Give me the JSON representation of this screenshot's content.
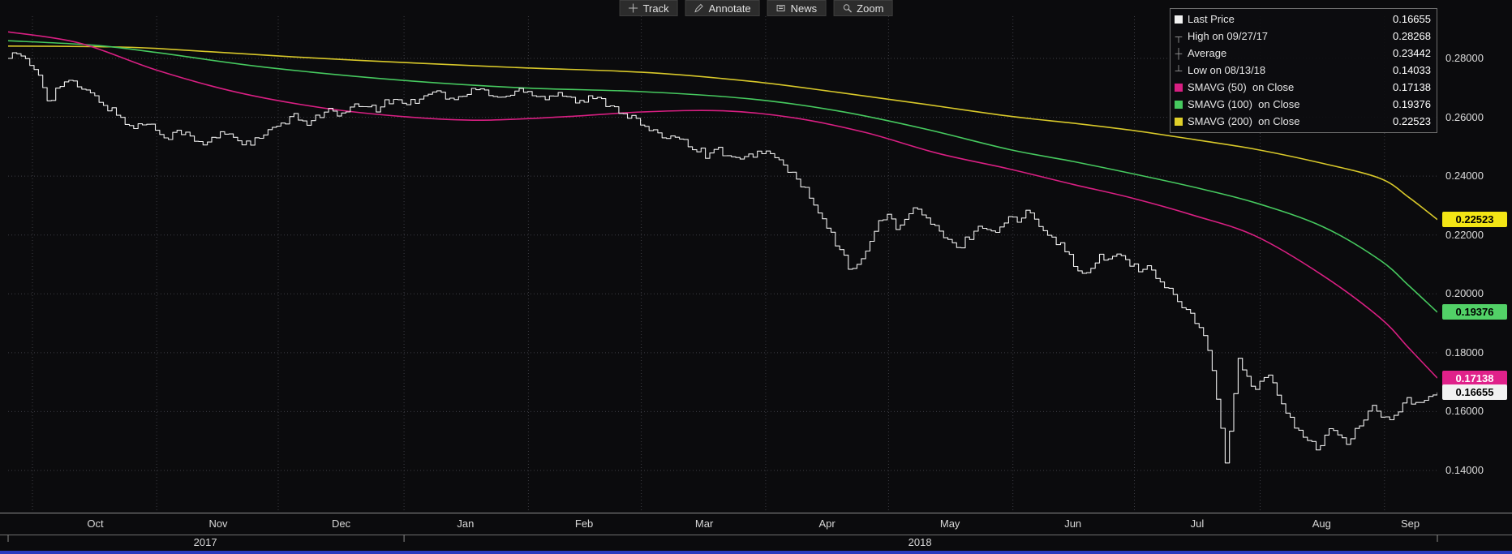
{
  "toolbar": {
    "buttons": [
      {
        "label": "Track",
        "icon": "track-crosshair-icon"
      },
      {
        "label": "Annotate",
        "icon": "annotate-pencil-icon"
      },
      {
        "label": "News",
        "icon": "news-icon"
      },
      {
        "label": "Zoom",
        "icon": "zoom-magnifier-icon"
      }
    ]
  },
  "legend": {
    "rows": [
      {
        "icon": "last-price-swatch",
        "swatch_color": "#f2f2f2",
        "label": "Last Price",
        "value": "0.16655"
      },
      {
        "icon": "high-marker-icon",
        "label": "High on 09/27/17",
        "value": "0.28268"
      },
      {
        "icon": "average-marker-icon",
        "label": "Average",
        "value": "0.23442"
      },
      {
        "icon": "low-marker-icon",
        "label": "Low on 08/13/18",
        "value": "0.14033"
      },
      {
        "icon": "smavg50-swatch",
        "swatch_color": "#d81f82",
        "label": "SMAVG (50)  on Close",
        "value": "0.17138"
      },
      {
        "icon": "smavg100-swatch",
        "swatch_color": "#46c95f",
        "label": "SMAVG (100)  on Close",
        "value": "0.19376"
      },
      {
        "icon": "smavg200-swatch",
        "swatch_color": "#e0d02a",
        "label": "SMAVG (200)  on Close",
        "value": "0.22523"
      }
    ]
  },
  "colors": {
    "background": "#0b0b0d",
    "grid": "#3d3d44",
    "price": "#f0f0f0",
    "smavg50": "#d81f82",
    "smavg100": "#46c95f",
    "smavg200": "#d8c82a",
    "axis_text": "#dcdcdc"
  },
  "chart_data": {
    "type": "line",
    "title": "",
    "x_unit": "time, Oct 2017 - Sep 2018",
    "grid": true,
    "legend_position": "top-right",
    "stats": {
      "last_price": 0.16655,
      "high": {
        "date": "09/27/17",
        "value": 0.28268
      },
      "average": 0.23442,
      "low": {
        "date": "08/13/18",
        "value": 0.14033
      },
      "smavg_50_close": 0.17138,
      "smavg_100_close": 0.19376,
      "smavg_200_close": 0.22523
    },
    "y_axis": {
      "ylim": [
        0.1255,
        0.2945
      ],
      "ticks": [
        {
          "label": "0.28000",
          "value": 0.28
        },
        {
          "label": "0.26000",
          "value": 0.26
        },
        {
          "label": "0.24000",
          "value": 0.24
        },
        {
          "label": "0.22000",
          "value": 0.22
        },
        {
          "label": "0.20000",
          "value": 0.2
        },
        {
          "label": "0.18000",
          "value": 0.18
        },
        {
          "label": "0.16000",
          "value": 0.16
        },
        {
          "label": "0.14000",
          "value": 0.14
        }
      ]
    },
    "x_axis": {
      "month_boundaries": [
        0.017,
        0.104,
        0.189,
        0.277,
        0.364,
        0.443,
        0.53,
        0.616,
        0.703,
        0.788,
        0.876,
        0.963
      ],
      "months": [
        {
          "label": "Oct",
          "center": 0.061
        },
        {
          "label": "Nov",
          "center": 0.147
        },
        {
          "label": "Dec",
          "center": 0.233
        },
        {
          "label": "Jan",
          "center": 0.32
        },
        {
          "label": "Feb",
          "center": 0.403
        },
        {
          "label": "Mar",
          "center": 0.487
        },
        {
          "label": "Apr",
          "center": 0.573
        },
        {
          "label": "May",
          "center": 0.659
        },
        {
          "label": "Jun",
          "center": 0.745
        },
        {
          "label": "Jul",
          "center": 0.832
        },
        {
          "label": "Aug",
          "center": 0.919
        },
        {
          "label": "Sep",
          "center": 0.981
        }
      ],
      "years": [
        {
          "label": "2017",
          "center": 0.138
        },
        {
          "label": "2018",
          "center": 0.638
        }
      ],
      "year_ticks": [
        0.0,
        0.277,
        1.0
      ]
    },
    "markers": [
      {
        "name": "smavg-200-badge",
        "label": "0.22523",
        "value": 0.22523,
        "bg": "#f3e515",
        "fg": "#000000"
      },
      {
        "name": "smavg-100-badge",
        "label": "0.19376",
        "value": 0.19376,
        "bg": "#52d167",
        "fg": "#000000"
      },
      {
        "name": "smavg-50-badge",
        "label": "0.17138",
        "value": 0.17138,
        "bg": "#e0218a",
        "fg": "#ffffff"
      },
      {
        "name": "last-price-badge",
        "label": "0.16655",
        "value": 0.16655,
        "bg": "#f2f2f2",
        "fg": "#000000"
      }
    ],
    "series": [
      {
        "name": "SMAVG (200) on Close",
        "color": "#d8c82a",
        "style": "smooth",
        "width": 1.6,
        "points": [
          [
            0.0,
            0.2842
          ],
          [
            0.06,
            0.284
          ],
          [
            0.104,
            0.2834
          ],
          [
            0.2,
            0.2805
          ],
          [
            0.277,
            0.2786
          ],
          [
            0.36,
            0.2768
          ],
          [
            0.4435,
            0.2753
          ],
          [
            0.52,
            0.2722
          ],
          [
            0.58,
            0.2685
          ],
          [
            0.64,
            0.2645
          ],
          [
            0.7,
            0.2604
          ],
          [
            0.745,
            0.258
          ],
          [
            0.786,
            0.2556
          ],
          [
            0.83,
            0.2524
          ],
          [
            0.873,
            0.2491
          ],
          [
            0.92,
            0.2443
          ],
          [
            0.96,
            0.2392
          ],
          [
            0.98,
            0.2328
          ],
          [
            1.0,
            0.22523
          ]
        ]
      },
      {
        "name": "SMAVG (100) on Close",
        "color": "#46c95f",
        "style": "smooth",
        "width": 1.6,
        "points": [
          [
            0.0,
            0.286
          ],
          [
            0.06,
            0.2845
          ],
          [
            0.104,
            0.282
          ],
          [
            0.18,
            0.277
          ],
          [
            0.277,
            0.2725
          ],
          [
            0.36,
            0.27
          ],
          [
            0.4435,
            0.2687
          ],
          [
            0.52,
            0.2662
          ],
          [
            0.58,
            0.2622
          ],
          [
            0.64,
            0.2562
          ],
          [
            0.7,
            0.2491
          ],
          [
            0.745,
            0.245
          ],
          [
            0.786,
            0.2409
          ],
          [
            0.83,
            0.2362
          ],
          [
            0.873,
            0.2309
          ],
          [
            0.92,
            0.2228
          ],
          [
            0.96,
            0.2114
          ],
          [
            0.98,
            0.2028
          ],
          [
            1.0,
            0.19376
          ]
        ]
      },
      {
        "name": "SMAVG (50) on Close",
        "color": "#d81f82",
        "style": "smooth",
        "width": 1.6,
        "points": [
          [
            0.0,
            0.289
          ],
          [
            0.05,
            0.2852
          ],
          [
            0.104,
            0.276
          ],
          [
            0.16,
            0.2685
          ],
          [
            0.22,
            0.2632
          ],
          [
            0.277,
            0.2602
          ],
          [
            0.33,
            0.259
          ],
          [
            0.39,
            0.2602
          ],
          [
            0.4435,
            0.2618
          ],
          [
            0.5,
            0.2622
          ],
          [
            0.55,
            0.2598
          ],
          [
            0.6,
            0.2548
          ],
          [
            0.65,
            0.2478
          ],
          [
            0.7,
            0.2425
          ],
          [
            0.745,
            0.2372
          ],
          [
            0.786,
            0.2326
          ],
          [
            0.83,
            0.2266
          ],
          [
            0.873,
            0.2196
          ],
          [
            0.92,
            0.2062
          ],
          [
            0.96,
            0.1918
          ],
          [
            0.98,
            0.1816
          ],
          [
            1.0,
            0.17138
          ]
        ]
      },
      {
        "name": "Last Price",
        "color": "#f0f0f0",
        "style": "step",
        "width": 1.1,
        "points": [
          [
            0.0,
            0.28
          ],
          [
            0.004,
            0.2825
          ],
          [
            0.01,
            0.2798
          ],
          [
            0.016,
            0.2772
          ],
          [
            0.022,
            0.2742
          ],
          [
            0.028,
            0.2652
          ],
          [
            0.034,
            0.2698
          ],
          [
            0.04,
            0.2725
          ],
          [
            0.048,
            0.2706
          ],
          [
            0.056,
            0.2682
          ],
          [
            0.064,
            0.2655
          ],
          [
            0.072,
            0.2624
          ],
          [
            0.08,
            0.2592
          ],
          [
            0.088,
            0.2562
          ],
          [
            0.096,
            0.2585
          ],
          [
            0.104,
            0.2556
          ],
          [
            0.112,
            0.2535
          ],
          [
            0.12,
            0.2558
          ],
          [
            0.128,
            0.2526
          ],
          [
            0.136,
            0.2505
          ],
          [
            0.144,
            0.253
          ],
          [
            0.152,
            0.2552
          ],
          [
            0.16,
            0.2526
          ],
          [
            0.168,
            0.2506
          ],
          [
            0.176,
            0.253
          ],
          [
            0.184,
            0.2556
          ],
          [
            0.192,
            0.258
          ],
          [
            0.2,
            0.26
          ],
          [
            0.208,
            0.2582
          ],
          [
            0.216,
            0.2605
          ],
          [
            0.224,
            0.2622
          ],
          [
            0.232,
            0.2603
          ],
          [
            0.24,
            0.2628
          ],
          [
            0.248,
            0.2645
          ],
          [
            0.256,
            0.2626
          ],
          [
            0.264,
            0.2648
          ],
          [
            0.272,
            0.2662
          ],
          [
            0.28,
            0.2646
          ],
          [
            0.288,
            0.2668
          ],
          [
            0.296,
            0.2694
          ],
          [
            0.304,
            0.2676
          ],
          [
            0.312,
            0.2656
          ],
          [
            0.32,
            0.2678
          ],
          [
            0.328,
            0.2699
          ],
          [
            0.336,
            0.2682
          ],
          [
            0.344,
            0.2663
          ],
          [
            0.352,
            0.268
          ],
          [
            0.36,
            0.2697
          ],
          [
            0.368,
            0.2681
          ],
          [
            0.376,
            0.2665
          ],
          [
            0.384,
            0.2687
          ],
          [
            0.392,
            0.2668
          ],
          [
            0.4,
            0.2649
          ],
          [
            0.408,
            0.2667
          ],
          [
            0.416,
            0.2654
          ],
          [
            0.424,
            0.2635
          ],
          [
            0.432,
            0.2611
          ],
          [
            0.44,
            0.2586
          ],
          [
            0.448,
            0.2558
          ],
          [
            0.456,
            0.2529
          ],
          [
            0.464,
            0.2546
          ],
          [
            0.472,
            0.2522
          ],
          [
            0.48,
            0.2498
          ],
          [
            0.488,
            0.2473
          ],
          [
            0.496,
            0.2492
          ],
          [
            0.504,
            0.2469
          ],
          [
            0.512,
            0.2448
          ],
          [
            0.52,
            0.2471
          ],
          [
            0.528,
            0.2489
          ],
          [
            0.536,
            0.2462
          ],
          [
            0.544,
            0.2429
          ],
          [
            0.552,
            0.239
          ],
          [
            0.558,
            0.2346
          ],
          [
            0.564,
            0.2296
          ],
          [
            0.57,
            0.2246
          ],
          [
            0.576,
            0.2196
          ],
          [
            0.582,
            0.2146
          ],
          [
            0.588,
            0.2092
          ],
          [
            0.592,
            0.207
          ],
          [
            0.598,
            0.2138
          ],
          [
            0.604,
            0.2198
          ],
          [
            0.61,
            0.2244
          ],
          [
            0.616,
            0.2269
          ],
          [
            0.622,
            0.2224
          ],
          [
            0.628,
            0.2256
          ],
          [
            0.634,
            0.229
          ],
          [
            0.64,
            0.2269
          ],
          [
            0.646,
            0.2236
          ],
          [
            0.652,
            0.2206
          ],
          [
            0.658,
            0.2174
          ],
          [
            0.664,
            0.2153
          ],
          [
            0.67,
            0.2184
          ],
          [
            0.676,
            0.2214
          ],
          [
            0.682,
            0.2234
          ],
          [
            0.688,
            0.2206
          ],
          [
            0.694,
            0.2232
          ],
          [
            0.7,
            0.226
          ],
          [
            0.706,
            0.2246
          ],
          [
            0.712,
            0.2276
          ],
          [
            0.718,
            0.2257
          ],
          [
            0.724,
            0.2228
          ],
          [
            0.73,
            0.2196
          ],
          [
            0.736,
            0.2166
          ],
          [
            0.742,
            0.213
          ],
          [
            0.748,
            0.2086
          ],
          [
            0.752,
            0.2054
          ],
          [
            0.758,
            0.2092
          ],
          [
            0.764,
            0.2127
          ],
          [
            0.77,
            0.2108
          ],
          [
            0.776,
            0.2141
          ],
          [
            0.782,
            0.2118
          ],
          [
            0.788,
            0.2093
          ],
          [
            0.792,
            0.2066
          ],
          [
            0.796,
            0.2097
          ],
          [
            0.8,
            0.2076
          ],
          [
            0.806,
            0.2046
          ],
          [
            0.812,
            0.2013
          ],
          [
            0.818,
            0.1983
          ],
          [
            0.824,
            0.1949
          ],
          [
            0.83,
            0.1909
          ],
          [
            0.836,
            0.1853
          ],
          [
            0.84,
            0.1796
          ],
          [
            0.844,
            0.1706
          ],
          [
            0.848,
            0.1561
          ],
          [
            0.851,
            0.14033
          ],
          [
            0.854,
            0.1499
          ],
          [
            0.857,
            0.1634
          ],
          [
            0.86,
            0.1779
          ],
          [
            0.864,
            0.1743
          ],
          [
            0.868,
            0.1701
          ],
          [
            0.872,
            0.1663
          ],
          [
            0.876,
            0.1699
          ],
          [
            0.88,
            0.1731
          ],
          [
            0.884,
            0.1694
          ],
          [
            0.888,
            0.1656
          ],
          [
            0.892,
            0.1621
          ],
          [
            0.896,
            0.1586
          ],
          [
            0.9,
            0.1556
          ],
          [
            0.905,
            0.1526
          ],
          [
            0.91,
            0.1496
          ],
          [
            0.915,
            0.1473
          ],
          [
            0.92,
            0.1507
          ],
          [
            0.925,
            0.1547
          ],
          [
            0.93,
            0.1519
          ],
          [
            0.935,
            0.1489
          ],
          [
            0.94,
            0.1516
          ],
          [
            0.945,
            0.1554
          ],
          [
            0.95,
            0.1587
          ],
          [
            0.955,
            0.1617
          ],
          [
            0.96,
            0.1593
          ],
          [
            0.965,
            0.1563
          ],
          [
            0.97,
            0.1591
          ],
          [
            0.975,
            0.1617
          ],
          [
            0.98,
            0.1641
          ],
          [
            0.985,
            0.1619
          ],
          [
            0.99,
            0.1637
          ],
          [
            0.995,
            0.1651
          ],
          [
            1.0,
            0.16655
          ]
        ]
      }
    ]
  }
}
